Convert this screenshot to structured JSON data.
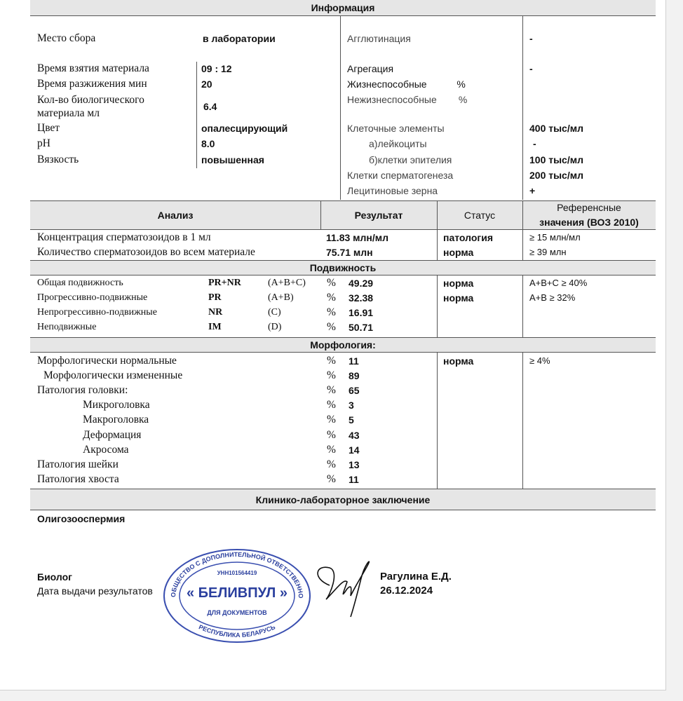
{
  "info": {
    "title": "Информация",
    "left": [
      {
        "label": "Место сбора",
        "value": "в лаборатории"
      },
      {
        "label": "Время взятия материала",
        "value": "09 : 12"
      },
      {
        "label": "Время разжижения   мин",
        "value": "20"
      },
      {
        "label": "Кол-во биологического",
        "label2": "материала  мл",
        "value": "6.4"
      },
      {
        "label": "Цвет",
        "value": "опалесцирующий"
      },
      {
        "label": "pH",
        "value": "8.0"
      },
      {
        "label": "Вязкость",
        "value": "повышенная"
      }
    ],
    "right": [
      {
        "label": "Агглютинация",
        "value": "-"
      },
      {
        "label": "Агрегация",
        "value": "-"
      },
      {
        "label": "Жизнеспособные           %",
        "value": ""
      },
      {
        "label": "Нежизнеспособные        %",
        "value": ""
      },
      {
        "label": "Клеточные элементы",
        "value": "400 тыс/мл"
      },
      {
        "label": "а)лейкоциты",
        "value": "-"
      },
      {
        "label": "б)клетки эпителия",
        "value": "100 тыс/мл"
      },
      {
        "label": "Клетки сперматогенеза",
        "value": "200 тыс/мл"
      },
      {
        "label": "Лецитиновые зерна",
        "value": "+"
      }
    ]
  },
  "analysis": {
    "headers": {
      "analysis": "Анализ",
      "result": "Результат",
      "status": "Статус",
      "reference1": "Референсные",
      "reference2": "значения  (ВОЗ 2010)"
    },
    "rows": [
      {
        "label": "Концентрация  сперматозоидов в 1 мл",
        "result": "11.83 млн/мл",
        "status": "патология",
        "reference": "≥ 15 млн/мл"
      },
      {
        "label": "Количество сперматозоидов во всем материале",
        "result": "75.71 млн",
        "status": "норма",
        "reference": "≥ 39 млн"
      }
    ]
  },
  "motility": {
    "title": "Подвижность",
    "rows": [
      {
        "label": "Общая подвижность",
        "code": "PR+NR",
        "group": "(A+B+C)",
        "unit": "%",
        "value": "49.29",
        "status": "норма",
        "reference": "A+B+C ≥ 40%"
      },
      {
        "label": "Прогрессивно-подвижные",
        "code": "PR",
        "group": "(A+B)",
        "unit": "%",
        "value": "32.38",
        "status": "норма",
        "reference": "A+B ≥ 32%"
      },
      {
        "label": "Непрогрессивно-подвижные",
        "code": "NR",
        "group": "(C)",
        "unit": "%",
        "value": "16.91",
        "status": "",
        "reference": ""
      },
      {
        "label": "Неподвижные",
        "code": "IM",
        "group": "(D)",
        "unit": "%",
        "value": "50.71",
        "status": "",
        "reference": ""
      }
    ]
  },
  "morphology": {
    "title": "Морфология:",
    "rows": [
      {
        "label": "Морфологически нормальные",
        "unit": "%",
        "value": "11",
        "status": "норма",
        "reference": "≥ 4%"
      },
      {
        "label": "Морфологически измененные",
        "unit": "%",
        "value": "89"
      },
      {
        "label": "Патология головки:",
        "unit": "%",
        "value": "65"
      },
      {
        "label": "Микроголовка",
        "unit": "%",
        "value": "3"
      },
      {
        "label": "Макроголовка",
        "unit": "%",
        "value": "5"
      },
      {
        "label": "Деформация",
        "unit": "%",
        "value": "43"
      },
      {
        "label": "Акросома",
        "unit": "%",
        "value": "14"
      },
      {
        "label": "Патология шейки",
        "unit": "%",
        "value": "13"
      },
      {
        "label": "Патология  хвоста",
        "unit": "%",
        "value": "11"
      }
    ]
  },
  "conclusion": {
    "title": "Клинико-лабораторное заключение",
    "text": "Олигозооспермия"
  },
  "footer": {
    "role": "Биолог",
    "name": "Рагулина Е.Д.",
    "date_label": "Дата выдачи результатов",
    "date": "26.12.2024"
  },
  "stamp": {
    "top": "ОБЩЕСТВО С ДОПОЛНИТЕЛЬНОЙ ОТВЕТСТВЕННОСТЬЮ",
    "unn": "УНН101564419",
    "name": "« БЕЛИВПУЛ »",
    "sub": "ДЛЯ ДОКУМЕНТОВ",
    "bottom": "РЕСПУБЛИКА БЕЛАРУСЬ"
  },
  "colors": {
    "header_bg": "#e6e6e6",
    "stamp": "#2a3f9e"
  }
}
